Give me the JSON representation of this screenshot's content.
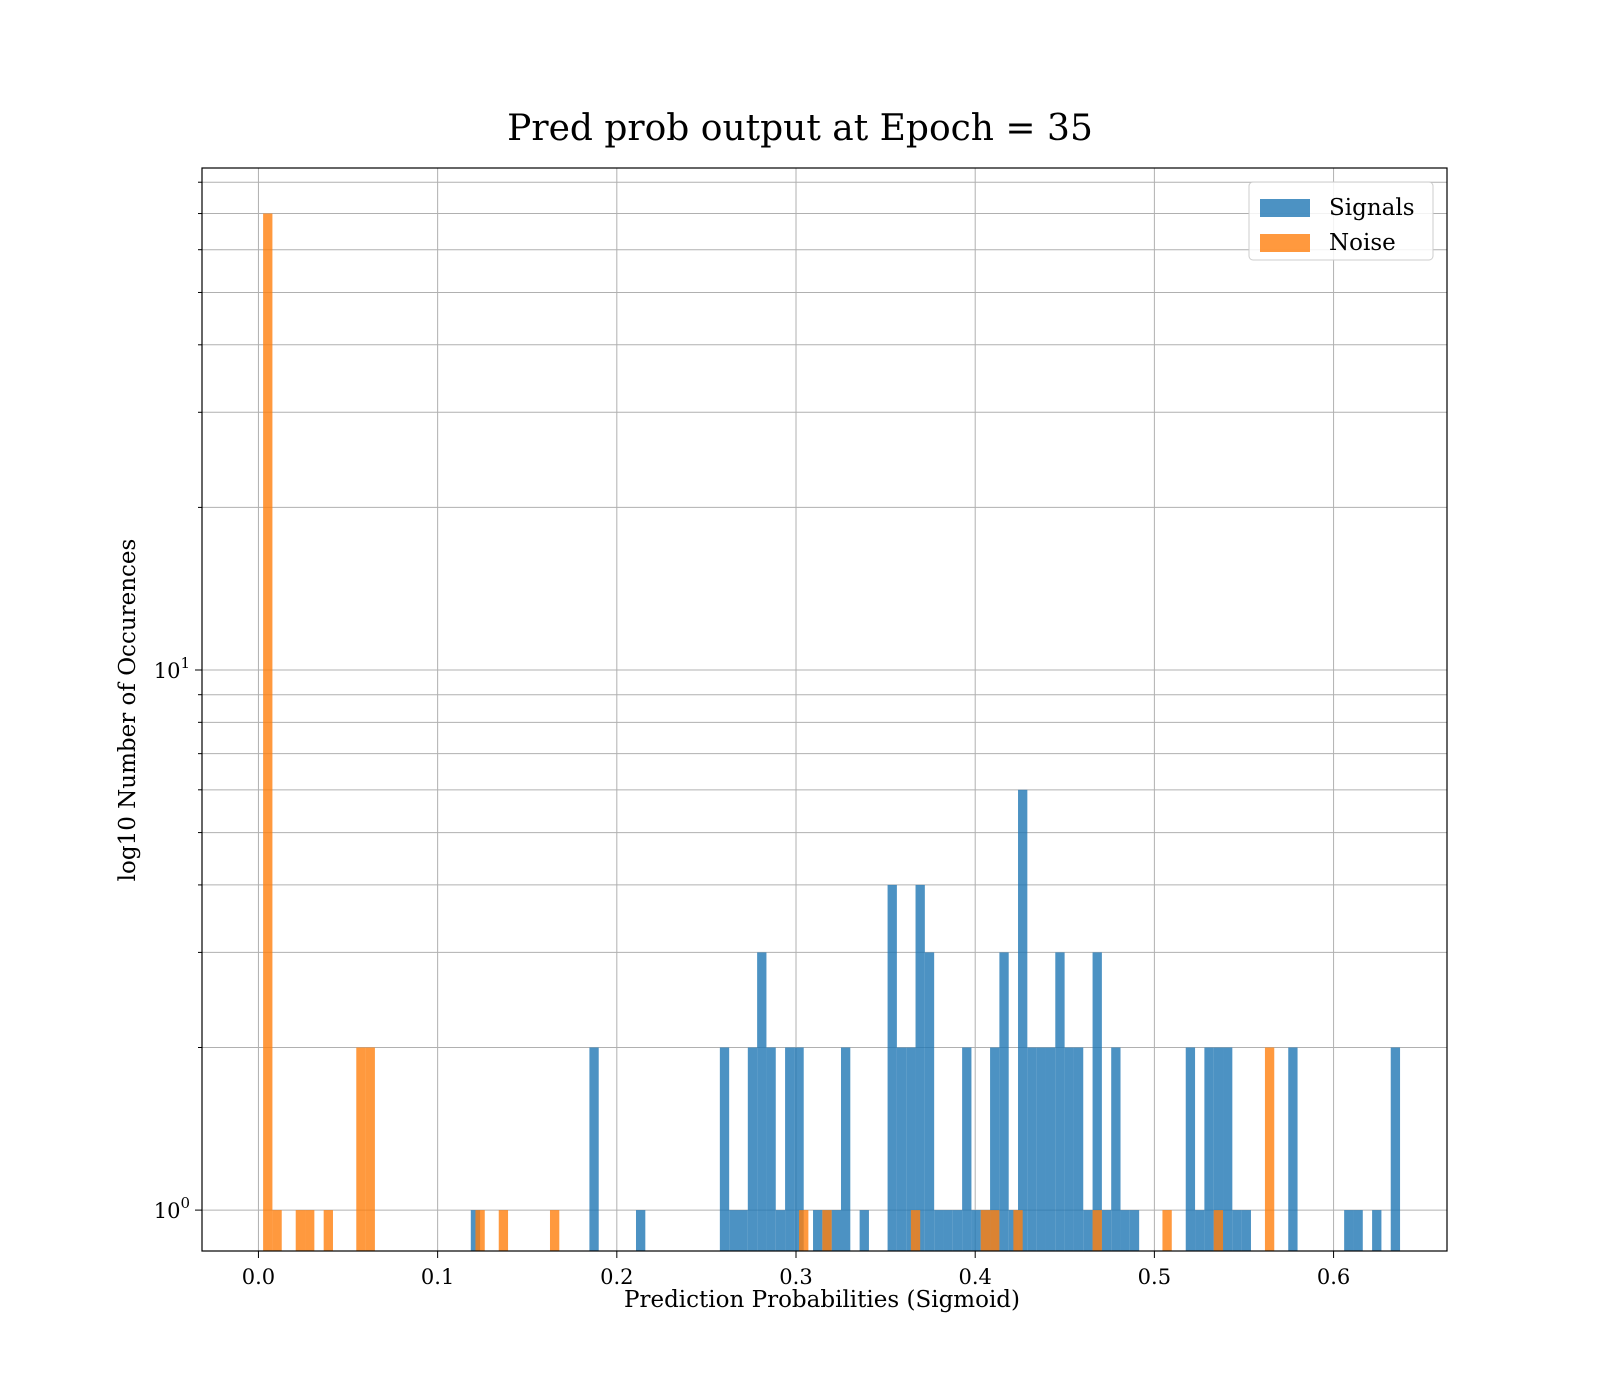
{
  "chart_data": {
    "type": "bar",
    "title": "Pred prob output at Epoch = 35",
    "xlabel": "Prediction Probabilities (Sigmoid)",
    "ylabel": "log10 Number of Occurences",
    "xlim": [
      -0.0315,
      0.6633
    ],
    "ylim": [
      0.84,
      85
    ],
    "yscale": "log",
    "grid": true,
    "legend_position": "top-right",
    "x_ticks": [
      "0.0",
      "0.1",
      "0.2",
      "0.3",
      "0.4",
      "0.5",
      "0.6"
    ],
    "x_tick_values": [
      0,
      0.1,
      0.2,
      0.3,
      0.4,
      0.5,
      0.6
    ],
    "y_ticks": [
      {
        "value": 1,
        "base": "10",
        "exp": "0"
      },
      {
        "value": 10,
        "base": "10",
        "exp": "1"
      }
    ],
    "bin_width": 0.0052,
    "series": [
      {
        "name": "Signals",
        "color": "#1f77b4",
        "opacity": 0.8,
        "bins": [
          [
            0.1185,
            1
          ],
          [
            0.1847,
            2
          ],
          [
            0.2107,
            1
          ],
          [
            0.2575,
            2
          ],
          [
            0.2627,
            1
          ],
          [
            0.2679,
            1
          ],
          [
            0.2731,
            2
          ],
          [
            0.2783,
            3
          ],
          [
            0.2835,
            2
          ],
          [
            0.2887,
            1
          ],
          [
            0.2939,
            2
          ],
          [
            0.2991,
            2
          ],
          [
            0.3095,
            1
          ],
          [
            0.3147,
            1
          ],
          [
            0.3199,
            1
          ],
          [
            0.3251,
            2
          ],
          [
            0.3355,
            1
          ],
          [
            0.3511,
            4
          ],
          [
            0.3563,
            2
          ],
          [
            0.3615,
            2
          ],
          [
            0.3667,
            4
          ],
          [
            0.3719,
            3
          ],
          [
            0.3771,
            1
          ],
          [
            0.3823,
            1
          ],
          [
            0.3875,
            1
          ],
          [
            0.3927,
            2
          ],
          [
            0.3979,
            1
          ],
          [
            0.4031,
            1
          ],
          [
            0.4083,
            2
          ],
          [
            0.4135,
            3
          ],
          [
            0.4187,
            1
          ],
          [
            0.4239,
            6
          ],
          [
            0.4291,
            2
          ],
          [
            0.4343,
            2
          ],
          [
            0.4395,
            2
          ],
          [
            0.4447,
            3
          ],
          [
            0.4499,
            2
          ],
          [
            0.4551,
            2
          ],
          [
            0.4603,
            1
          ],
          [
            0.4655,
            3
          ],
          [
            0.4707,
            1
          ],
          [
            0.4759,
            2
          ],
          [
            0.4811,
            1
          ],
          [
            0.4863,
            1
          ],
          [
            0.5175,
            2
          ],
          [
            0.5227,
            1
          ],
          [
            0.5279,
            2
          ],
          [
            0.5331,
            2
          ],
          [
            0.5383,
            2
          ],
          [
            0.5435,
            1
          ],
          [
            0.5487,
            1
          ],
          [
            0.5747,
            2
          ],
          [
            0.6059,
            1
          ],
          [
            0.6111,
            1
          ],
          [
            0.6215,
            1
          ],
          [
            0.6319,
            2
          ]
        ]
      },
      {
        "name": "Noise",
        "color": "#ff7f0e",
        "opacity": 0.8,
        "bins": [
          [
            0.0026,
            70
          ],
          [
            0.0078,
            1
          ],
          [
            0.0208,
            1
          ],
          [
            0.026,
            1
          ],
          [
            0.0364,
            1
          ],
          [
            0.0546,
            2
          ],
          [
            0.0598,
            2
          ],
          [
            0.1211,
            1
          ],
          [
            0.1341,
            1
          ],
          [
            0.1627,
            1
          ],
          [
            0.3017,
            1
          ],
          [
            0.3147,
            1
          ],
          [
            0.3641,
            1
          ],
          [
            0.4031,
            1
          ],
          [
            0.4083,
            1
          ],
          [
            0.4213,
            1
          ],
          [
            0.4655,
            1
          ],
          [
            0.5045,
            1
          ],
          [
            0.5331,
            1
          ],
          [
            0.5617,
            2
          ]
        ]
      }
    ]
  }
}
